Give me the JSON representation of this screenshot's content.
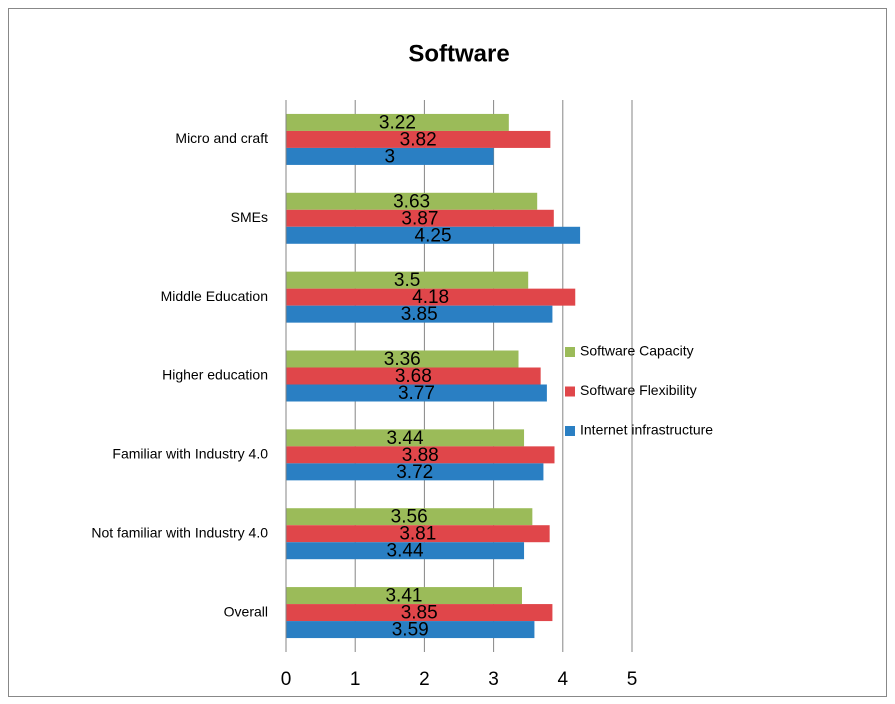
{
  "chart_data": {
    "type": "hbar",
    "title": "Software",
    "categories": [
      "Micro and craft",
      "SMEs",
      "Middle Education",
      "Higher education",
      "Familiar with Industry 4.0",
      "Not familiar with Industry 4.0",
      "Overall"
    ],
    "series": [
      {
        "name": "Software Capacity",
        "color": "#9bbb59",
        "values": [
          3.22,
          3.63,
          3.5,
          3.36,
          3.44,
          3.56,
          3.41
        ]
      },
      {
        "name": "Software Flexibility",
        "color": "#e0464a",
        "values": [
          3.82,
          3.87,
          4.18,
          3.68,
          3.88,
          3.81,
          3.85
        ]
      },
      {
        "name": "Internet infrastructure",
        "color": "#2a7fc3",
        "values": [
          3,
          4.25,
          3.85,
          3.77,
          3.72,
          3.44,
          3.59
        ]
      }
    ],
    "xlim": [
      0,
      5
    ],
    "xticks": [
      0,
      1,
      2,
      3,
      4,
      5
    ],
    "grid": true,
    "legend": "right"
  }
}
